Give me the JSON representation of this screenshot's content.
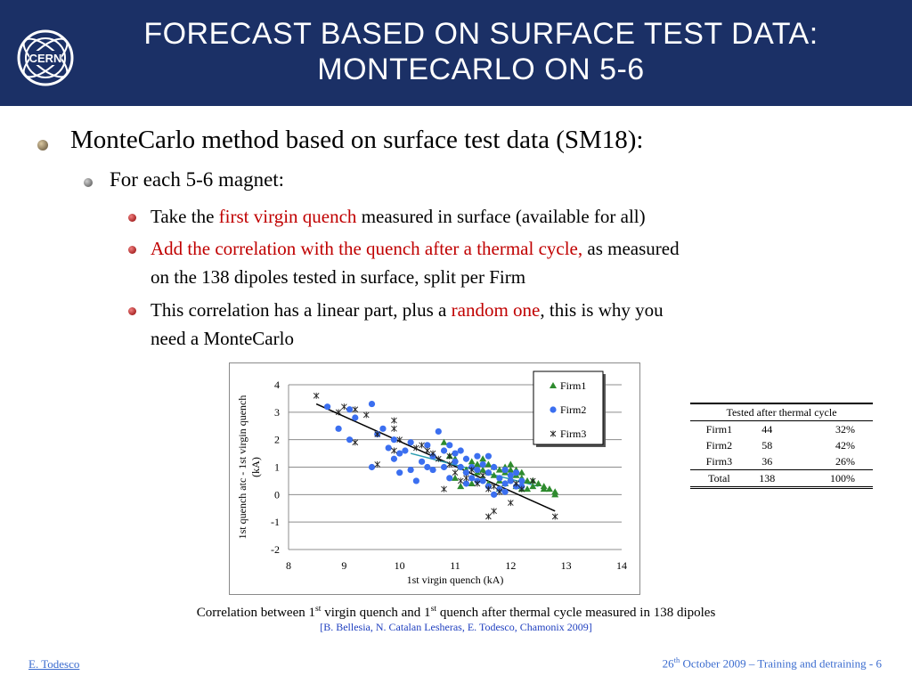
{
  "header": {
    "title_line1": "Forecast based on surface test data:",
    "title_line2": "Montecarlo on 5-6",
    "logo_text": "CERN"
  },
  "bullets": {
    "b1": "MonteCarlo method based on surface test data (SM18):",
    "b2": "For each 5-6 magnet:",
    "b3_pre": "Take the ",
    "b3_red": "first virgin quench",
    "b3_post": " measured in surface (available for all)",
    "b4_red": "Add the correlation with the quench after a thermal cycle,",
    "b4_post_1": " as measured",
    "b4_post_2": "on the 138 dipoles tested in surface, split per Firm",
    "b5_pre": "This correlation has a linear part, plus a ",
    "b5_red": "random one",
    "b5_post": ", this is why you",
    "b5_line2": "need a MonteCarlo"
  },
  "chart_data": {
    "type": "scatter",
    "xlabel": "1st virgin quench (kA)",
    "ylabel_line1": "1st quench atc - 1st virgin quench",
    "ylabel_line2": "(kA)",
    "xlim": [
      8,
      14
    ],
    "ylim": [
      -2,
      4
    ],
    "xticks": [
      8,
      9,
      10,
      11,
      12,
      13,
      14
    ],
    "yticks": [
      4,
      3,
      2,
      1,
      0,
      -1,
      -2
    ],
    "grid": "horizontal",
    "legend_position": "top-right",
    "series": [
      {
        "name": "Firm1",
        "marker": "triangle",
        "color": "#2e8b2e",
        "points": [
          [
            10.8,
            1.9
          ],
          [
            11.0,
            1.3
          ],
          [
            11.1,
            1.0
          ],
          [
            11.2,
            0.9
          ],
          [
            11.3,
            1.2
          ],
          [
            11.4,
            0.8
          ],
          [
            11.5,
            1.3
          ],
          [
            11.5,
            0.6
          ],
          [
            11.6,
            1.1
          ],
          [
            11.6,
            0.4
          ],
          [
            11.7,
            1.0
          ],
          [
            11.7,
            0.7
          ],
          [
            11.8,
            0.9
          ],
          [
            11.8,
            0.5
          ],
          [
            11.9,
            0.8
          ],
          [
            11.9,
            0.4
          ],
          [
            12.0,
            0.9
          ],
          [
            12.0,
            0.6
          ],
          [
            12.1,
            0.7
          ],
          [
            12.1,
            0.3
          ],
          [
            12.2,
            0.6
          ],
          [
            12.2,
            0.8
          ],
          [
            12.3,
            0.5
          ],
          [
            12.3,
            0.2
          ],
          [
            12.4,
            0.5
          ],
          [
            12.4,
            0.3
          ],
          [
            12.5,
            0.4
          ],
          [
            12.6,
            0.3
          ],
          [
            12.7,
            0.2
          ],
          [
            12.8,
            0.1
          ],
          [
            12.8,
            0.0
          ],
          [
            11.0,
            0.6
          ],
          [
            11.3,
            0.4
          ],
          [
            11.4,
            1.1
          ],
          [
            11.9,
            1.0
          ],
          [
            12.1,
            0.9
          ],
          [
            10.9,
            1.4
          ],
          [
            11.6,
            0.8
          ],
          [
            12.2,
            0.2
          ],
          [
            11.1,
            0.3
          ],
          [
            11.5,
            0.9
          ],
          [
            12.0,
            1.1
          ],
          [
            12.6,
            0.2
          ],
          [
            11.8,
            0.2
          ]
        ]
      },
      {
        "name": "Firm2",
        "marker": "circle",
        "color": "#3b6ff0",
        "points": [
          [
            8.7,
            3.2
          ],
          [
            8.9,
            2.4
          ],
          [
            9.1,
            3.1
          ],
          [
            9.2,
            2.8
          ],
          [
            9.1,
            2.0
          ],
          [
            9.5,
            3.3
          ],
          [
            9.5,
            1.0
          ],
          [
            9.6,
            2.2
          ],
          [
            9.7,
            2.4
          ],
          [
            9.8,
            1.7
          ],
          [
            9.9,
            2.0
          ],
          [
            10.0,
            0.8
          ],
          [
            10.1,
            1.6
          ],
          [
            10.2,
            1.9
          ],
          [
            10.3,
            0.5
          ],
          [
            10.4,
            1.2
          ],
          [
            10.5,
            1.8
          ],
          [
            10.6,
            1.4
          ],
          [
            10.6,
            0.9
          ],
          [
            10.7,
            2.3
          ],
          [
            10.8,
            1.0
          ],
          [
            10.9,
            0.6
          ],
          [
            11.0,
            1.5
          ],
          [
            11.1,
            1.0
          ],
          [
            11.2,
            0.8
          ],
          [
            11.2,
            1.3
          ],
          [
            11.3,
            0.6
          ],
          [
            11.4,
            0.9
          ],
          [
            11.5,
            0.5
          ],
          [
            11.5,
            1.1
          ],
          [
            11.6,
            0.3
          ],
          [
            11.6,
            0.8
          ],
          [
            11.7,
            1.0
          ],
          [
            11.7,
            0.0
          ],
          [
            11.8,
            0.6
          ],
          [
            11.8,
            0.2
          ],
          [
            11.9,
            0.9
          ],
          [
            11.9,
            0.4
          ],
          [
            12.0,
            0.7
          ],
          [
            12.0,
            0.5
          ],
          [
            12.1,
            0.3
          ],
          [
            12.1,
            0.8
          ],
          [
            12.2,
            0.5
          ],
          [
            12.2,
            0.3
          ],
          [
            10.9,
            1.8
          ],
          [
            11.0,
            1.2
          ],
          [
            11.3,
            1.0
          ],
          [
            11.4,
            0.5
          ],
          [
            10.5,
            1.0
          ],
          [
            10.2,
            0.9
          ],
          [
            11.1,
            1.6
          ],
          [
            11.6,
            1.4
          ],
          [
            11.9,
            0.1
          ],
          [
            10.8,
            1.6
          ],
          [
            11.2,
            0.4
          ],
          [
            10.0,
            1.5
          ],
          [
            9.9,
            1.3
          ],
          [
            11.4,
            1.4
          ]
        ]
      },
      {
        "name": "Firm3",
        "marker": "x",
        "color": "#222222",
        "points": [
          [
            8.5,
            3.6
          ],
          [
            8.9,
            3.0
          ],
          [
            9.0,
            3.2
          ],
          [
            9.2,
            3.1
          ],
          [
            9.2,
            1.9
          ],
          [
            9.4,
            2.9
          ],
          [
            9.6,
            1.1
          ],
          [
            9.6,
            2.2
          ],
          [
            9.9,
            2.7
          ],
          [
            9.9,
            2.4
          ],
          [
            9.9,
            1.6
          ],
          [
            10.0,
            2.0
          ],
          [
            10.3,
            1.7
          ],
          [
            10.5,
            1.6
          ],
          [
            10.6,
            1.5
          ],
          [
            10.7,
            1.3
          ],
          [
            10.8,
            0.2
          ],
          [
            10.9,
            1.1
          ],
          [
            11.0,
            0.8
          ],
          [
            11.2,
            0.6
          ],
          [
            11.4,
            0.4
          ],
          [
            11.5,
            0.7
          ],
          [
            11.6,
            -0.8
          ],
          [
            11.7,
            -0.6
          ],
          [
            11.7,
            0.3
          ],
          [
            11.8,
            0.1
          ],
          [
            12.0,
            -0.3
          ],
          [
            12.1,
            0.4
          ],
          [
            12.4,
            0.5
          ],
          [
            12.8,
            -0.8
          ],
          [
            10.9,
            1.4
          ],
          [
            11.3,
            0.9
          ],
          [
            11.6,
            0.2
          ],
          [
            12.2,
            0.2
          ],
          [
            10.4,
            1.8
          ],
          [
            11.1,
            0.5
          ]
        ]
      }
    ],
    "fit_lines": [
      {
        "color": "#000000",
        "from": [
          8.5,
          3.3
        ],
        "to": [
          12.8,
          -0.6
        ]
      },
      {
        "color": "#2a9db0",
        "from": [
          10.2,
          1.5
        ],
        "to": [
          12.5,
          0.3
        ]
      }
    ]
  },
  "summary_table": {
    "title": "Tested after thermal cycle",
    "rows": [
      [
        "Firm1",
        "44",
        "32%"
      ],
      [
        "Firm2",
        "58",
        "42%"
      ],
      [
        "Firm3",
        "36",
        "26%"
      ],
      [
        "Total",
        "138",
        "100%"
      ]
    ]
  },
  "caption": {
    "c1": "Correlation between 1",
    "c1_sup": "st",
    "c2": " virgin quench and 1",
    "c2_sup": "st",
    "c3": " quench after thermal cycle measured in 138 dipoles",
    "reference": "[B. Bellesia, N. Catalan Lesheras, E. Todesco, Chamonix 2009]"
  },
  "footer": {
    "author": "E. Todesco",
    "date_pre": "26",
    "date_sup": "th",
    "date_post": " October 2009 – Training and detraining - 6"
  },
  "colors": {
    "header_bg": "#1b3066",
    "accent_red": "#c00000",
    "link_blue": "#3b6ccf"
  }
}
